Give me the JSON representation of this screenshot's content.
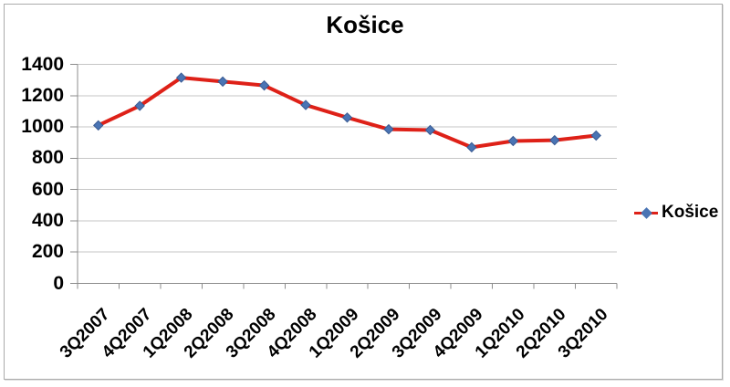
{
  "chart_data": {
    "type": "line",
    "title": "Košice",
    "categories": [
      "3Q2007",
      "4Q2007",
      "1Q2008",
      "2Q2008",
      "3Q2008",
      "4Q2008",
      "1Q2009",
      "2Q2009",
      "3Q2009",
      "4Q2009",
      "1Q2010",
      "2Q2010",
      "3Q2010"
    ],
    "series": [
      {
        "name": "Košice",
        "values": [
          1010,
          1135,
          1315,
          1290,
          1265,
          1140,
          1060,
          985,
          980,
          870,
          910,
          915,
          945
        ]
      }
    ],
    "ylim": [
      0,
      1400
    ],
    "ytick_step": 200,
    "yticks": [
      0,
      200,
      400,
      600,
      800,
      1000,
      1200,
      1400
    ],
    "grid": true,
    "legend_position": "right",
    "colors": {
      "line": "#DE2118",
      "marker": "#4A74B4",
      "marker_edge": "#3A5B93",
      "gridline": "#C6C6C6",
      "axis": "#8C8C8C",
      "text": "#000000",
      "border": "#ABABAB"
    },
    "marker_shape": "diamond"
  }
}
